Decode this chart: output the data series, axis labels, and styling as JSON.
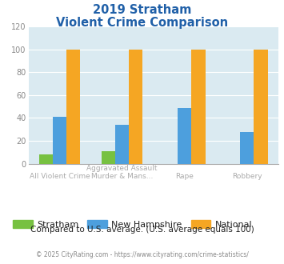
{
  "title_line1": "2019 Stratham",
  "title_line2": "Violent Crime Comparison",
  "series": {
    "Stratham": [
      8,
      11,
      0,
      0
    ],
    "New Hampshire": [
      41,
      34,
      49,
      28
    ],
    "National": [
      100,
      100,
      100,
      100
    ]
  },
  "colors": {
    "Stratham": "#77c141",
    "New Hampshire": "#4d9fdd",
    "National": "#f5a623"
  },
  "ylim": [
    0,
    120
  ],
  "yticks": [
    0,
    20,
    40,
    60,
    80,
    100,
    120
  ],
  "plot_bg": "#daeaf1",
  "title_color": "#2060a8",
  "xlabel_top": [
    "",
    "Aggravated Assault",
    "",
    ""
  ],
  "xlabel_bot": [
    "All Violent Crime",
    "Murder & Mans...",
    "Rape",
    "Robbery"
  ],
  "footer_note": "Compared to U.S. average. (U.S. average equals 100)",
  "copyright_left": "© 2025 CityRating.com - ",
  "copyright_link": "https://www.cityrating.com/crime-statistics/",
  "bar_width": 0.22
}
